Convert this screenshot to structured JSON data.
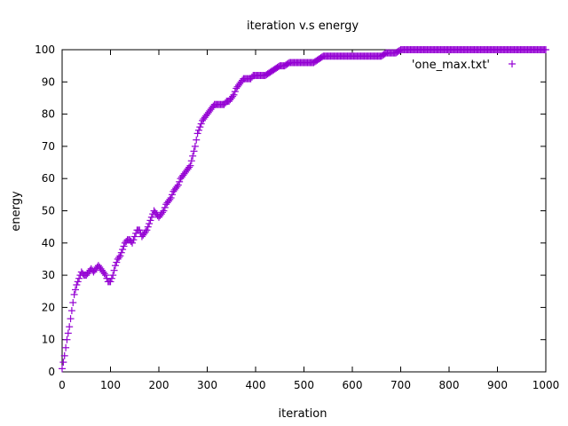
{
  "chart_data": {
    "type": "scatter",
    "title": "iteration v.s energy",
    "xlabel": "iteration",
    "ylabel": "energy",
    "xlim": [
      0,
      1000
    ],
    "ylim": [
      0,
      100
    ],
    "x_ticks": [
      "0",
      "100",
      "200",
      "300",
      "400",
      "500",
      "600",
      "700",
      "800",
      "900",
      "1000"
    ],
    "y_ticks": [
      "0",
      "10",
      "20",
      "30",
      "40",
      "50",
      "60",
      "70",
      "80",
      "90",
      "100"
    ],
    "grid": false,
    "legend_position": "top-right",
    "series": [
      {
        "name": "'one_max.txt'",
        "color": "#9400d3",
        "marker": "plus",
        "points": [
          [
            0,
            1
          ],
          [
            5,
            5
          ],
          [
            10,
            10
          ],
          [
            15,
            14
          ],
          [
            20,
            19
          ],
          [
            25,
            24
          ],
          [
            30,
            27
          ],
          [
            35,
            29
          ],
          [
            40,
            31
          ],
          [
            45,
            30
          ],
          [
            50,
            30
          ],
          [
            55,
            31
          ],
          [
            60,
            32
          ],
          [
            65,
            31
          ],
          [
            70,
            32
          ],
          [
            75,
            33
          ],
          [
            80,
            32
          ],
          [
            85,
            31
          ],
          [
            90,
            30
          ],
          [
            95,
            28
          ],
          [
            100,
            28
          ],
          [
            105,
            30
          ],
          [
            110,
            33
          ],
          [
            115,
            35
          ],
          [
            120,
            36
          ],
          [
            125,
            38
          ],
          [
            130,
            40
          ],
          [
            135,
            41
          ],
          [
            140,
            41
          ],
          [
            145,
            40
          ],
          [
            150,
            42
          ],
          [
            155,
            44
          ],
          [
            160,
            44
          ],
          [
            165,
            42
          ],
          [
            170,
            43
          ],
          [
            175,
            44
          ],
          [
            180,
            46
          ],
          [
            185,
            48
          ],
          [
            190,
            50
          ],
          [
            195,
            49
          ],
          [
            200,
            48
          ],
          [
            205,
            49
          ],
          [
            210,
            50
          ],
          [
            215,
            52
          ],
          [
            220,
            53
          ],
          [
            225,
            54
          ],
          [
            230,
            56
          ],
          [
            235,
            57
          ],
          [
            240,
            58
          ],
          [
            245,
            60
          ],
          [
            250,
            61
          ],
          [
            255,
            62
          ],
          [
            260,
            63
          ],
          [
            265,
            64
          ],
          [
            270,
            67
          ],
          [
            275,
            70
          ],
          [
            280,
            74
          ],
          [
            285,
            76
          ],
          [
            290,
            78
          ],
          [
            295,
            79
          ],
          [
            300,
            80
          ],
          [
            305,
            81
          ],
          [
            310,
            82
          ],
          [
            315,
            83
          ],
          [
            320,
            83
          ],
          [
            325,
            83
          ],
          [
            330,
            83
          ],
          [
            335,
            83
          ],
          [
            340,
            84
          ],
          [
            345,
            84
          ],
          [
            350,
            85
          ],
          [
            355,
            86
          ],
          [
            360,
            88
          ],
          [
            365,
            89
          ],
          [
            370,
            90
          ],
          [
            375,
            91
          ],
          [
            380,
            91
          ],
          [
            385,
            91
          ],
          [
            390,
            91
          ],
          [
            395,
            92
          ],
          [
            400,
            92
          ],
          [
            410,
            92
          ],
          [
            420,
            92
          ],
          [
            430,
            93
          ],
          [
            440,
            94
          ],
          [
            450,
            95
          ],
          [
            460,
            95
          ],
          [
            470,
            96
          ],
          [
            480,
            96
          ],
          [
            490,
            96
          ],
          [
            500,
            96
          ],
          [
            510,
            96
          ],
          [
            520,
            96
          ],
          [
            530,
            97
          ],
          [
            540,
            98
          ],
          [
            550,
            98
          ],
          [
            560,
            98
          ],
          [
            570,
            98
          ],
          [
            580,
            98
          ],
          [
            590,
            98
          ],
          [
            600,
            98
          ],
          [
            610,
            98
          ],
          [
            620,
            98
          ],
          [
            630,
            98
          ],
          [
            640,
            98
          ],
          [
            650,
            98
          ],
          [
            660,
            98
          ],
          [
            670,
            99
          ],
          [
            680,
            99
          ],
          [
            690,
            99
          ],
          [
            700,
            100
          ],
          [
            720,
            100
          ],
          [
            740,
            100
          ],
          [
            760,
            100
          ],
          [
            780,
            100
          ],
          [
            800,
            100
          ],
          [
            820,
            100
          ],
          [
            840,
            100
          ],
          [
            860,
            100
          ],
          [
            880,
            100
          ],
          [
            900,
            100
          ],
          [
            920,
            100
          ],
          [
            940,
            100
          ],
          [
            960,
            100
          ],
          [
            980,
            100
          ],
          [
            1000,
            100
          ]
        ]
      }
    ]
  }
}
